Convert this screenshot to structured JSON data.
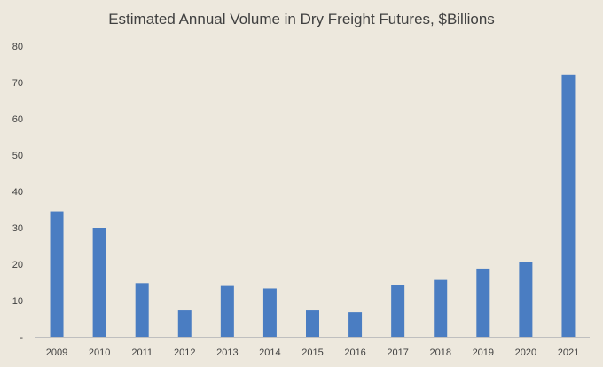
{
  "chart_data": {
    "type": "bar",
    "title": "Estimated Annual Volume in Dry Freight Futures,  $Billions",
    "categories": [
      "2009",
      "2010",
      "2011",
      "2012",
      "2013",
      "2014",
      "2015",
      "2016",
      "2017",
      "2018",
      "2019",
      "2020",
      "2021"
    ],
    "values": [
      34.5,
      30.0,
      14.8,
      7.3,
      14.0,
      13.3,
      7.3,
      6.8,
      14.2,
      15.7,
      18.8,
      20.5,
      72.0
    ],
    "ylim": [
      0,
      80
    ],
    "yticks": [
      {
        "value": 0,
        "label": "-"
      },
      {
        "value": 10,
        "label": "10"
      },
      {
        "value": 20,
        "label": "20"
      },
      {
        "value": 30,
        "label": "30"
      },
      {
        "value": 40,
        "label": "40"
      },
      {
        "value": 50,
        "label": "50"
      },
      {
        "value": 60,
        "label": "60"
      },
      {
        "value": 70,
        "label": "70"
      },
      {
        "value": 80,
        "label": "80"
      }
    ],
    "grid": false,
    "bar_color": "#4a7dc2",
    "axis_color": "#bfbfbf"
  }
}
